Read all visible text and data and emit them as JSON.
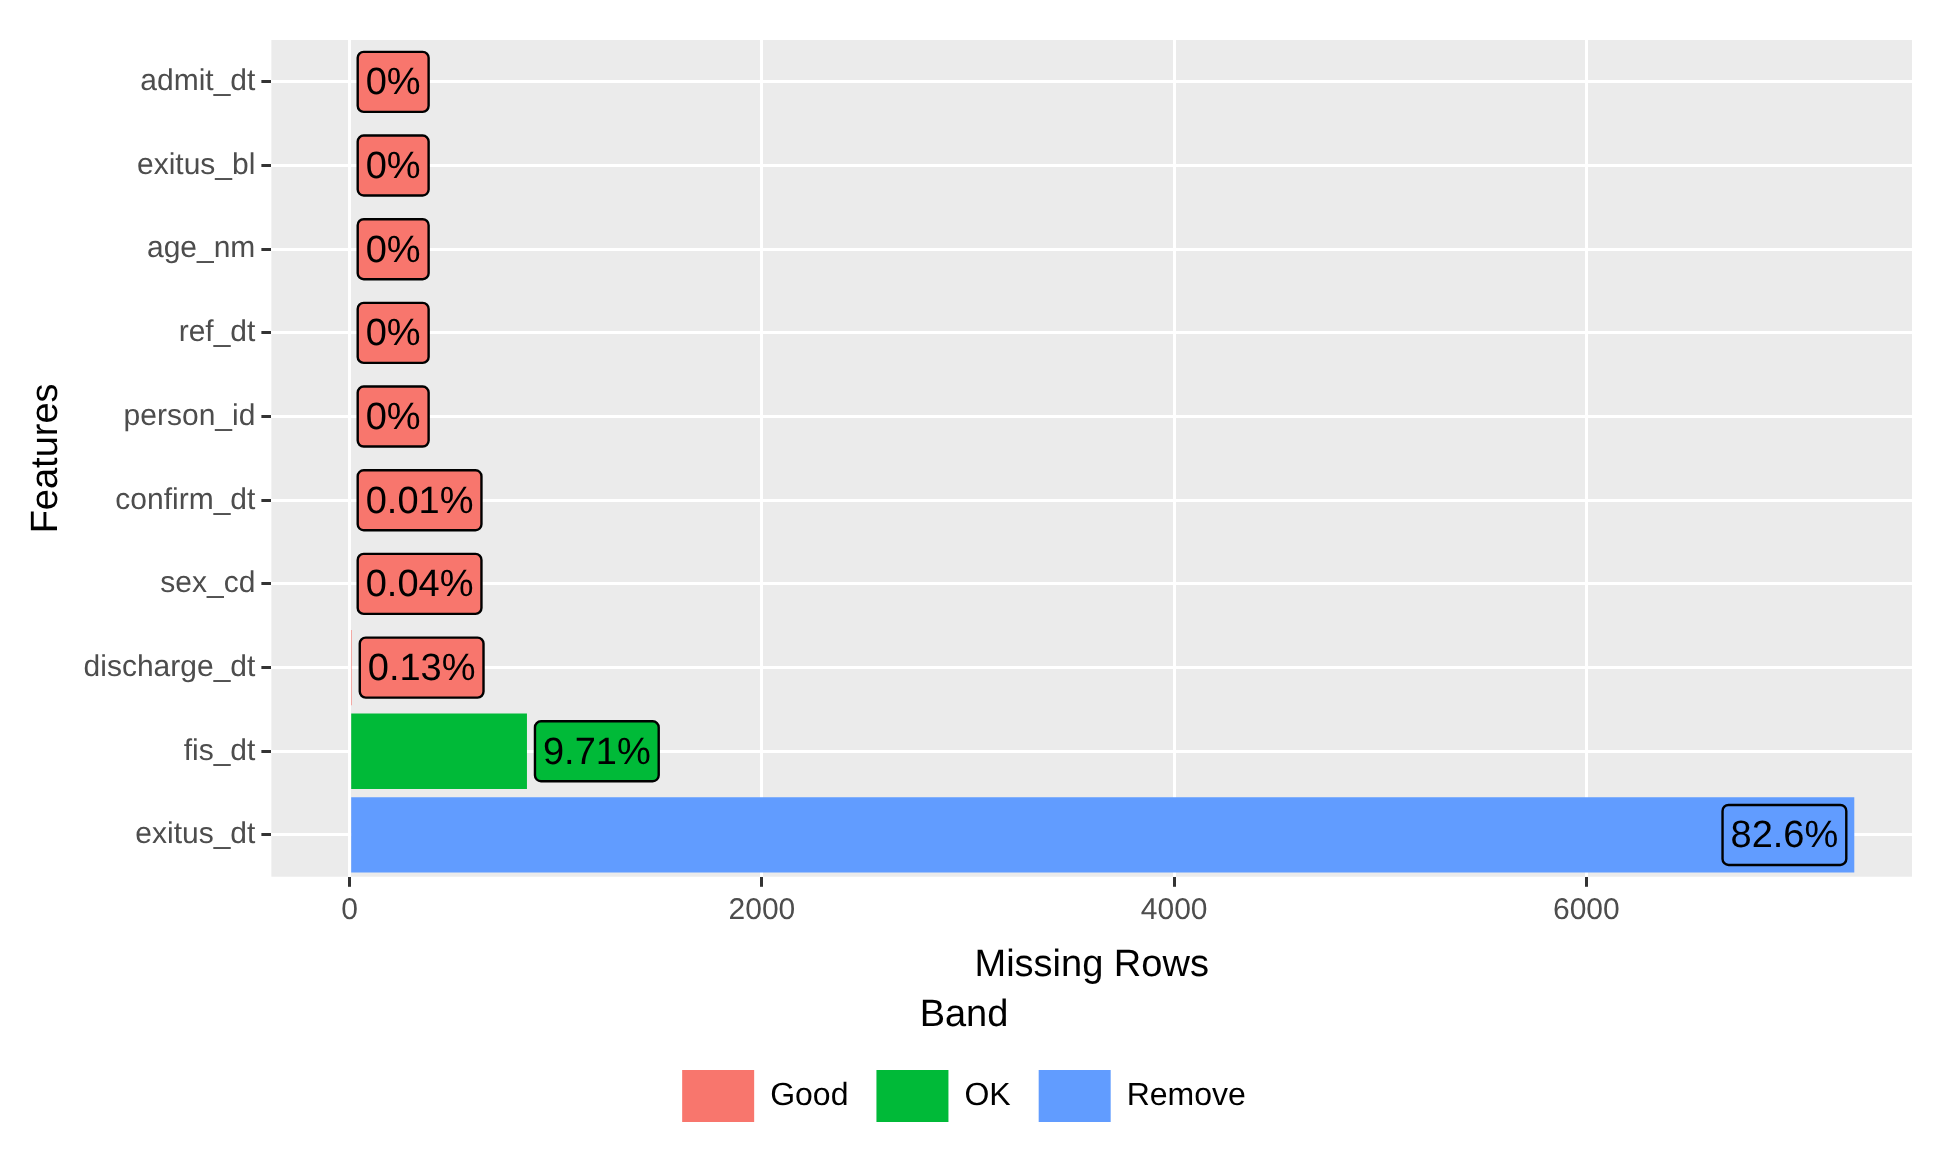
{
  "chart_data": {
    "type": "bar",
    "orientation": "horizontal",
    "stacked": true,
    "xlabel": "Missing Rows",
    "ylabel": "Features",
    "legend_title": "Band",
    "legend": "bottom",
    "grid": true,
    "categories": [
      "admit_dt",
      "exitus_bl",
      "age_nm",
      "ref_dt",
      "person_id",
      "confirm_dt",
      "sex_cd",
      "discharge_dt",
      "fis_dt",
      "exitus_dt"
    ],
    "xlim": [
      -380,
      7580
    ],
    "xticks": [
      0,
      2000,
      4000,
      6000
    ],
    "series": [
      {
        "name": "Good",
        "color": "#f8766d",
        "values": [
          0,
          0,
          0,
          0,
          0,
          0,
          0,
          10,
          null,
          null
        ]
      },
      {
        "name": "OK",
        "color": "#00ba38",
        "values": [
          null,
          null,
          null,
          null,
          null,
          null,
          null,
          null,
          860,
          null
        ]
      },
      {
        "name": "Remove",
        "color": "#619cff",
        "values": [
          null,
          null,
          null,
          null,
          null,
          null,
          null,
          null,
          null,
          7300
        ]
      }
    ],
    "annotations": [
      {
        "text": "0%",
        "x": 0,
        "y": "admit_dt"
      },
      {
        "text": "0%",
        "x": 0,
        "y": "exitus_bl"
      },
      {
        "text": "0%",
        "x": 0,
        "y": "age_nm"
      },
      {
        "text": "0%",
        "x": 0,
        "y": "ref_dt"
      },
      {
        "text": "0%",
        "x": 0,
        "y": "person_id"
      },
      {
        "text": "0.01%",
        "x": 0,
        "y": "confirm_dt"
      },
      {
        "text": "0.04%",
        "x": 0,
        "y": "sex_cd"
      },
      {
        "text": "0.13%",
        "x": 10,
        "y": "discharge_dt"
      },
      {
        "text": "9.71%",
        "x": 860,
        "y": "fis_dt"
      },
      {
        "text": "82.6%",
        "x": 7300,
        "y": "exitus_dt"
      }
    ]
  }
}
